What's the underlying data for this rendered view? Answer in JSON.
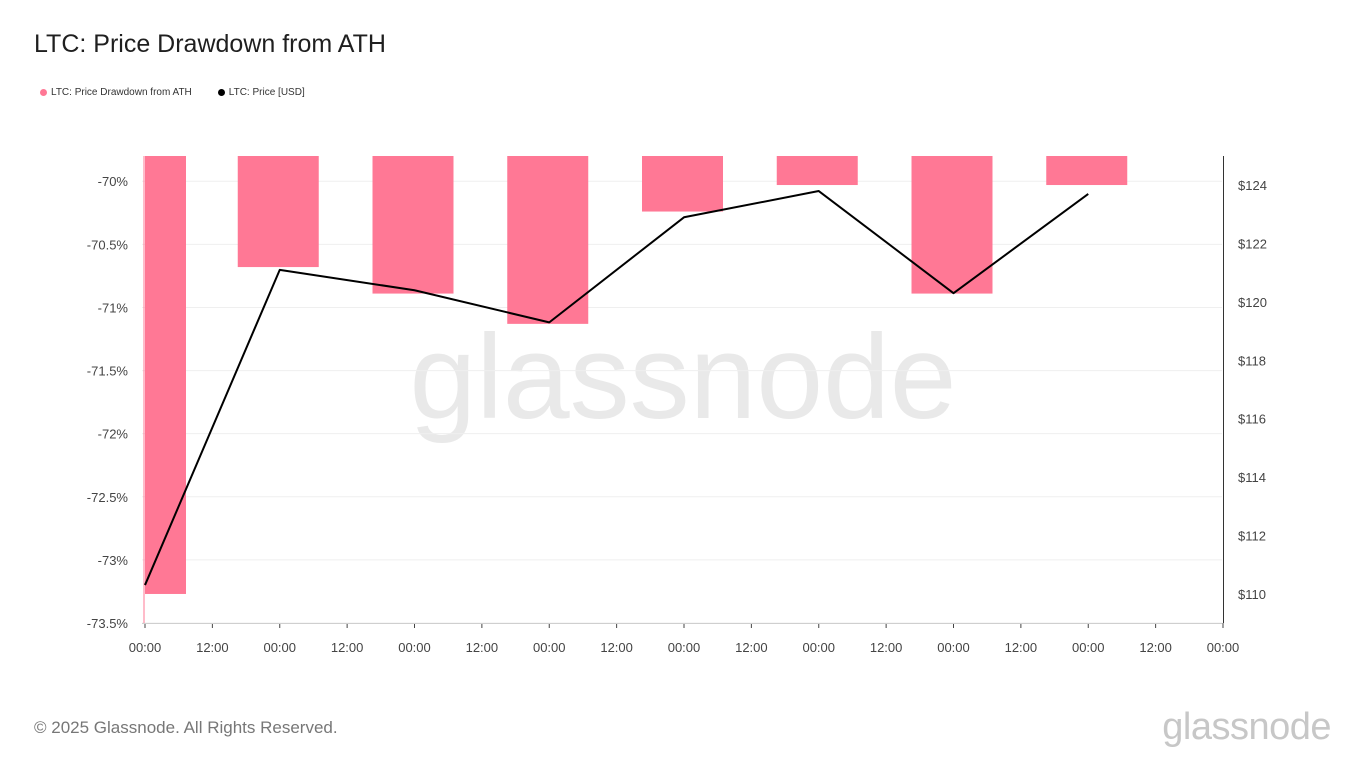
{
  "header": {
    "title": "LTC: Price Drawdown from ATH"
  },
  "legend": [
    {
      "label": "LTC: Price Drawdown from ATH",
      "color": "#ff7895"
    },
    {
      "label": "LTC: Price [USD]",
      "color": "#000000"
    }
  ],
  "watermark": "glassnode",
  "footer": {
    "copyright": "© 2025 Glassnode. All Rights Reserved.",
    "logo": "glassnode"
  },
  "chart_data": {
    "type": "bar",
    "title": "LTC: Price Drawdown from ATH",
    "x_tick_labels": [
      "00:00",
      "12:00",
      "00:00",
      "12:00",
      "00:00",
      "12:00",
      "00:00",
      "12:00",
      "00:00",
      "12:00",
      "00:00",
      "12:00",
      "00:00",
      "12:00",
      "00:00",
      "12:00",
      "00:00"
    ],
    "left_axis": {
      "ylim": [
        -73.5,
        -69.8
      ],
      "ticks": [
        -70,
        -70.5,
        -71,
        -71.5,
        -72,
        -72.5,
        -73,
        -73.5
      ],
      "tick_labels": [
        "-70%",
        "-70.5%",
        "-71%",
        "-71.5%",
        "-72%",
        "-72.5%",
        "-73%",
        "-73.5%"
      ]
    },
    "right_axis": {
      "ylim": [
        109,
        125
      ],
      "ticks": [
        110,
        112,
        114,
        116,
        118,
        120,
        122,
        124
      ],
      "tick_labels": [
        "$110",
        "$112",
        "$114",
        "$116",
        "$118",
        "$120",
        "$122",
        "$124"
      ]
    },
    "series": [
      {
        "name": "LTC: Price Drawdown from ATH",
        "type": "bar",
        "axis": "left",
        "color": "#ff7895",
        "x": [
          0,
          1,
          2,
          3,
          4,
          5,
          6,
          7
        ],
        "values": [
          -73.27,
          -70.68,
          -70.89,
          -71.13,
          -70.24,
          -70.03,
          -70.89,
          -70.03
        ]
      },
      {
        "name": "LTC: Price [USD]",
        "type": "line",
        "axis": "right",
        "color": "#000000",
        "x": [
          0,
          1,
          2,
          3,
          4,
          5,
          6,
          7
        ],
        "values": [
          110.3,
          121.1,
          120.4,
          119.3,
          122.9,
          123.8,
          120.3,
          123.7
        ]
      }
    ],
    "grid": true,
    "legend_position": "top-left"
  }
}
